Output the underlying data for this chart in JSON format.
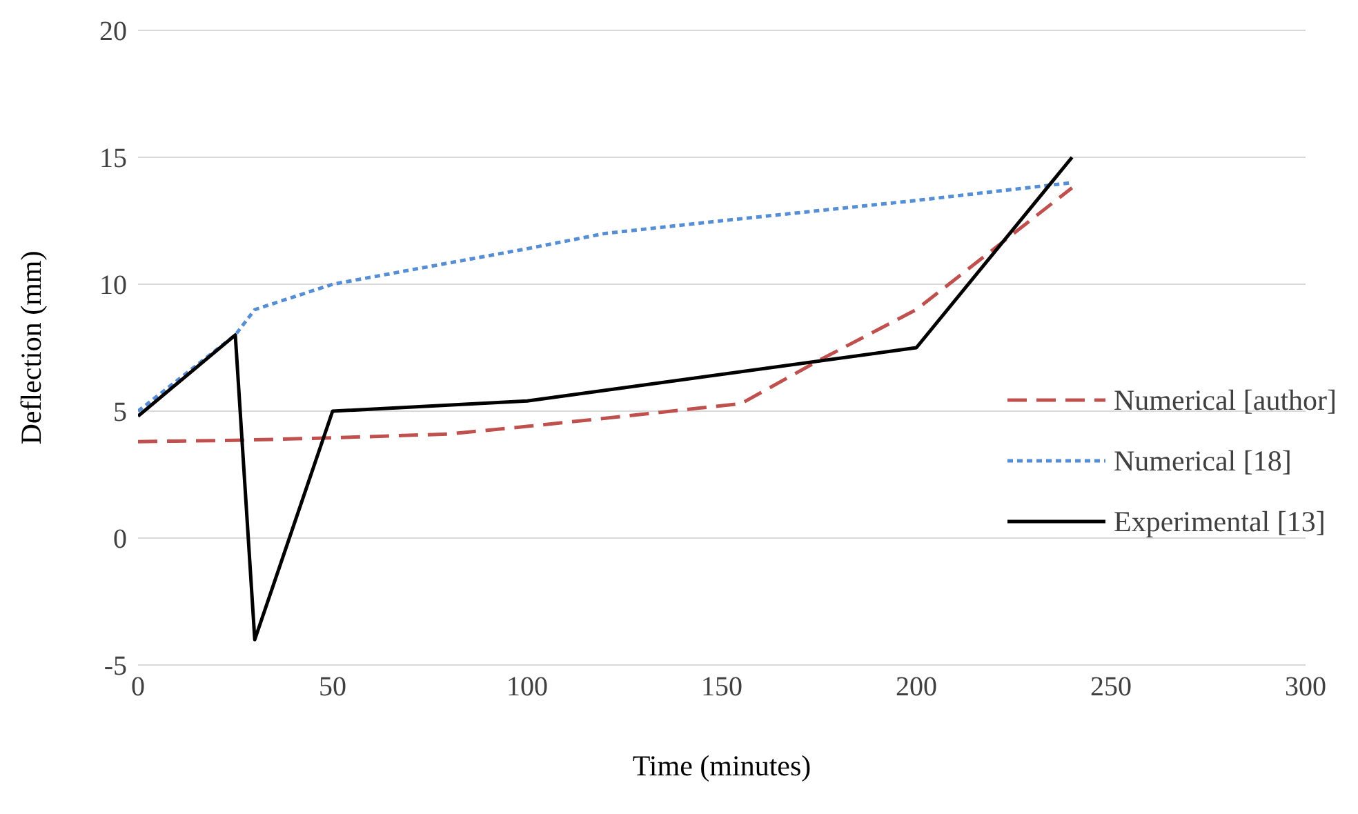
{
  "chart_data": {
    "type": "line",
    "xlabel": "Time (minutes)",
    "ylabel": "Deflection (mm)",
    "xlim": [
      0,
      300
    ],
    "xticks": [
      0,
      50,
      100,
      150,
      200,
      250,
      300
    ],
    "ylim": [
      -5,
      20
    ],
    "yticks": [
      -5,
      0,
      5,
      10,
      15,
      20
    ],
    "grid": "y",
    "legend": "right",
    "marker": "none",
    "series": [
      {
        "name": "Numerical [author]",
        "color": "#c0504d",
        "line_style": "dashed",
        "x": [
          0,
          25,
          50,
          80,
          100,
          125,
          155,
          175,
          200,
          240
        ],
        "values": [
          3.8,
          3.85,
          3.95,
          4.1,
          4.4,
          4.8,
          5.3,
          7,
          9,
          13.8
        ]
      },
      {
        "name": "Numerical [18]",
        "color": "#558ed5",
        "line_style": "dotted",
        "x": [
          0,
          25,
          30,
          50,
          75,
          100,
          120,
          150,
          200,
          240
        ],
        "values": [
          5,
          8,
          9,
          10,
          10.7,
          11.4,
          12,
          12.5,
          13.3,
          14
        ]
      },
      {
        "name": "Experimental [13]",
        "color": "#000000",
        "line_style": "solid",
        "x": [
          0,
          25,
          30,
          50,
          100,
          200,
          240
        ],
        "values": [
          4.8,
          8,
          -4,
          5,
          5.4,
          7.5,
          15
        ]
      }
    ]
  }
}
